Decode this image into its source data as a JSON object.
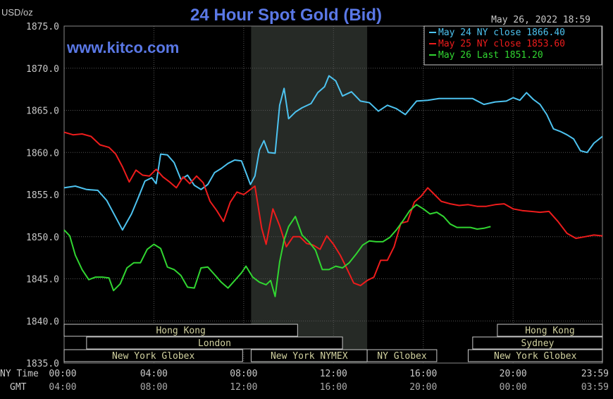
{
  "header": {
    "unit": "USD/oz",
    "title": "24 Hour Spot Gold (Bid)",
    "timestamp": "May 26, 2022 18:59",
    "watermark": "www.kitco.com"
  },
  "colors": {
    "background": "#000000",
    "plot_background": "#000000",
    "grid": "#555555",
    "title": "#5a78e6",
    "watermark": "#5a78e6",
    "axis_text": "#c8c8c8",
    "nymex_shade": "#262a26",
    "session_box": "#c8c8c8",
    "session_text": "#d2d2a0"
  },
  "time_axis": {
    "ny_time_label": "NY Time",
    "gmt_label": "GMT",
    "ny_ticks": [
      "00:00",
      "04:00",
      "08:00",
      "12:00",
      "16:00",
      "20:00",
      "23:59"
    ],
    "gmt_ticks": [
      "04:00",
      "08:00",
      "12:00",
      "16:00",
      "20:00",
      "00:00",
      "03:59"
    ]
  },
  "sessions": [
    {
      "label": "Hong Kong",
      "start": 0,
      "end": 10.4,
      "row": 0
    },
    {
      "label": "Hong Kong",
      "start": 19.3,
      "end": 23.98,
      "row": 0
    },
    {
      "label": "London",
      "start": 1.0,
      "end": 12.4,
      "row": 1
    },
    {
      "label": "Sydney",
      "start": 18.2,
      "end": 23.98,
      "row": 1
    },
    {
      "label": "New York Globex",
      "start": 0,
      "end": 7.95,
      "row": 2
    },
    {
      "label": "New York NYMEX",
      "start": 8.33,
      "end": 13.5,
      "row": 2
    },
    {
      "label": "NY Globex",
      "start": 13.5,
      "end": 16.6,
      "row": 2
    },
    {
      "label": "New York Globex",
      "start": 18.0,
      "end": 23.98,
      "row": 2
    }
  ],
  "chart_data": {
    "type": "line",
    "title": "24 Hour Spot Gold (Bid)",
    "ylabel": "USD/oz",
    "xlim": [
      0,
      23.98
    ],
    "ylim": [
      1835,
      1875
    ],
    "yticks": [
      "1875.0",
      "1870.0",
      "1865.0",
      "1860.0",
      "1855.0",
      "1850.0",
      "1845.0",
      "1840.0",
      "1835.0"
    ],
    "ytick_values": [
      1875,
      1870,
      1865,
      1860,
      1855,
      1850,
      1845,
      1840,
      1835
    ],
    "grid": true,
    "legend_position": "top-right",
    "nymex_shaded_hours": [
      8.33,
      13.5
    ],
    "series": [
      {
        "name": "May 24 NY close 1866.40",
        "color": "#4dc3f0",
        "x": [
          0,
          0.5,
          1.0,
          1.5,
          1.9,
          2.3,
          2.6,
          3.0,
          3.3,
          3.6,
          3.9,
          4.1,
          4.3,
          4.6,
          4.9,
          5.2,
          5.5,
          5.8,
          6.1,
          6.4,
          6.7,
          7.0,
          7.3,
          7.6,
          7.9,
          8.1,
          8.3,
          8.5,
          8.7,
          8.9,
          9.1,
          9.4,
          9.6,
          9.8,
          10.0,
          10.3,
          10.6,
          11.0,
          11.3,
          11.6,
          11.8,
          12.1,
          12.4,
          12.8,
          13.2,
          13.6,
          14.0,
          14.4,
          14.8,
          15.2,
          15.7,
          16.2,
          16.7,
          17.2,
          17.7,
          18.2,
          18.7,
          19.2,
          19.7,
          20.0,
          20.3,
          20.6,
          20.9,
          21.2,
          21.5,
          21.8,
          22.1,
          22.4,
          22.7,
          23.0,
          23.3,
          23.6,
          23.98
        ],
        "y": [
          1855.8,
          1856.0,
          1855.6,
          1855.5,
          1854.3,
          1852.3,
          1850.8,
          1852.7,
          1854.6,
          1856.6,
          1857.0,
          1856.3,
          1859.8,
          1859.7,
          1858.8,
          1856.8,
          1857.3,
          1856.1,
          1855.6,
          1856.2,
          1857.6,
          1858.1,
          1858.7,
          1859.1,
          1859.0,
          1857.6,
          1856.2,
          1857.2,
          1860.3,
          1861.4,
          1860.0,
          1859.9,
          1865.6,
          1867.6,
          1864.0,
          1864.8,
          1865.3,
          1865.8,
          1867.1,
          1867.8,
          1869.1,
          1868.5,
          1866.7,
          1867.2,
          1866.1,
          1865.9,
          1864.9,
          1865.6,
          1865.2,
          1864.5,
          1866.1,
          1866.2,
          1866.4,
          1866.4,
          1866.4,
          1866.4,
          1865.7,
          1866.0,
          1866.1,
          1866.5,
          1866.2,
          1867.1,
          1866.3,
          1865.7,
          1864.5,
          1862.8,
          1862.5,
          1862.1,
          1861.6,
          1860.2,
          1860.0,
          1861.1,
          1861.9
        ]
      },
      {
        "name": "May 25 NY close 1853.60",
        "color": "#ee1c1c",
        "x": [
          0,
          0.4,
          0.8,
          1.2,
          1.6,
          2.0,
          2.3,
          2.6,
          2.9,
          3.2,
          3.5,
          3.8,
          4.1,
          4.4,
          4.7,
          5.0,
          5.3,
          5.6,
          5.9,
          6.2,
          6.5,
          6.8,
          7.1,
          7.4,
          7.7,
          8.0,
          8.2,
          8.5,
          8.8,
          9.0,
          9.3,
          9.6,
          9.9,
          10.2,
          10.5,
          10.8,
          11.1,
          11.4,
          11.7,
          12.0,
          12.3,
          12.6,
          12.9,
          13.2,
          13.5,
          13.8,
          14.1,
          14.4,
          14.7,
          15.0,
          15.3,
          15.6,
          15.9,
          16.2,
          16.5,
          16.8,
          17.2,
          17.6,
          18.0,
          18.4,
          18.8,
          19.2,
          19.6,
          20.0,
          20.4,
          20.8,
          21.2,
          21.6,
          22.0,
          22.4,
          22.8,
          23.2,
          23.6,
          23.98
        ],
        "y": [
          1862.4,
          1862.1,
          1862.2,
          1861.9,
          1860.9,
          1860.6,
          1859.8,
          1858.3,
          1856.5,
          1857.9,
          1857.3,
          1857.2,
          1858.0,
          1857.1,
          1856.5,
          1855.8,
          1857.1,
          1856.3,
          1857.2,
          1856.4,
          1854.2,
          1853.1,
          1851.8,
          1854.1,
          1855.3,
          1855.0,
          1855.4,
          1856.0,
          1851.0,
          1849.1,
          1853.3,
          1851.3,
          1848.8,
          1850.0,
          1850.0,
          1849.2,
          1849.0,
          1848.5,
          1850.1,
          1849.1,
          1847.8,
          1846.2,
          1844.5,
          1844.2,
          1844.8,
          1845.2,
          1847.2,
          1847.2,
          1848.8,
          1851.6,
          1851.8,
          1854.1,
          1854.8,
          1855.8,
          1855.0,
          1854.2,
          1853.9,
          1853.7,
          1853.8,
          1853.6,
          1853.6,
          1853.8,
          1853.9,
          1853.3,
          1853.1,
          1853.0,
          1852.9,
          1853.0,
          1851.8,
          1850.4,
          1849.8,
          1850.0,
          1850.2,
          1850.1
        ]
      },
      {
        "name": "May 26 Last 1851.20",
        "color": "#31d631",
        "x": [
          0,
          0.25,
          0.5,
          0.8,
          1.1,
          1.4,
          1.7,
          2.0,
          2.2,
          2.5,
          2.8,
          3.1,
          3.4,
          3.7,
          4.0,
          4.3,
          4.6,
          4.9,
          5.2,
          5.5,
          5.8,
          6.1,
          6.4,
          6.7,
          7.0,
          7.3,
          7.6,
          7.9,
          8.1,
          8.4,
          8.7,
          9.0,
          9.2,
          9.4,
          9.6,
          9.8,
          10.0,
          10.3,
          10.6,
          10.9,
          11.2,
          11.5,
          11.8,
          12.1,
          12.4,
          12.7,
          13.0,
          13.3,
          13.6,
          13.9,
          14.2,
          14.5,
          14.8,
          15.1,
          15.4,
          15.7,
          16.0,
          16.3,
          16.6,
          16.9,
          17.2,
          17.5,
          17.8,
          18.1,
          18.4,
          18.7,
          19.0
        ],
        "y": [
          1850.8,
          1850.1,
          1847.8,
          1846.1,
          1844.9,
          1845.2,
          1845.2,
          1845.1,
          1843.6,
          1844.4,
          1846.3,
          1846.9,
          1846.9,
          1848.5,
          1849.1,
          1848.6,
          1846.4,
          1846.1,
          1845.4,
          1844.0,
          1843.9,
          1846.3,
          1846.4,
          1845.5,
          1844.6,
          1843.9,
          1844.8,
          1845.7,
          1846.5,
          1845.2,
          1844.6,
          1844.3,
          1844.8,
          1842.9,
          1847.0,
          1849.6,
          1851.2,
          1852.4,
          1850.2,
          1849.4,
          1848.4,
          1846.1,
          1846.1,
          1846.5,
          1846.3,
          1846.9,
          1847.9,
          1849.0,
          1849.5,
          1849.4,
          1849.4,
          1849.9,
          1850.8,
          1851.9,
          1853.1,
          1853.8,
          1853.3,
          1852.7,
          1852.9,
          1852.4,
          1851.5,
          1851.1,
          1851.1,
          1851.1,
          1850.9,
          1851.0,
          1851.2
        ]
      }
    ]
  }
}
